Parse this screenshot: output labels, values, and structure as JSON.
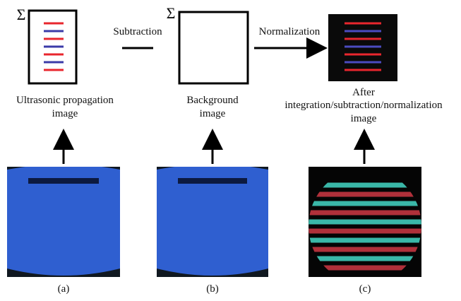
{
  "panels": [
    {
      "sigma": "Σ",
      "caption": [
        "Ultrasonic propagation",
        "image"
      ],
      "label": "(a)"
    },
    {
      "sigma": "Σ",
      "caption": [
        "Background",
        "image"
      ],
      "label": "(b)"
    },
    {
      "caption": [
        "After",
        "integration/subtraction/normalization",
        "image"
      ],
      "label": "(c)"
    }
  ],
  "operations": [
    "Subtraction",
    "Normalization"
  ]
}
